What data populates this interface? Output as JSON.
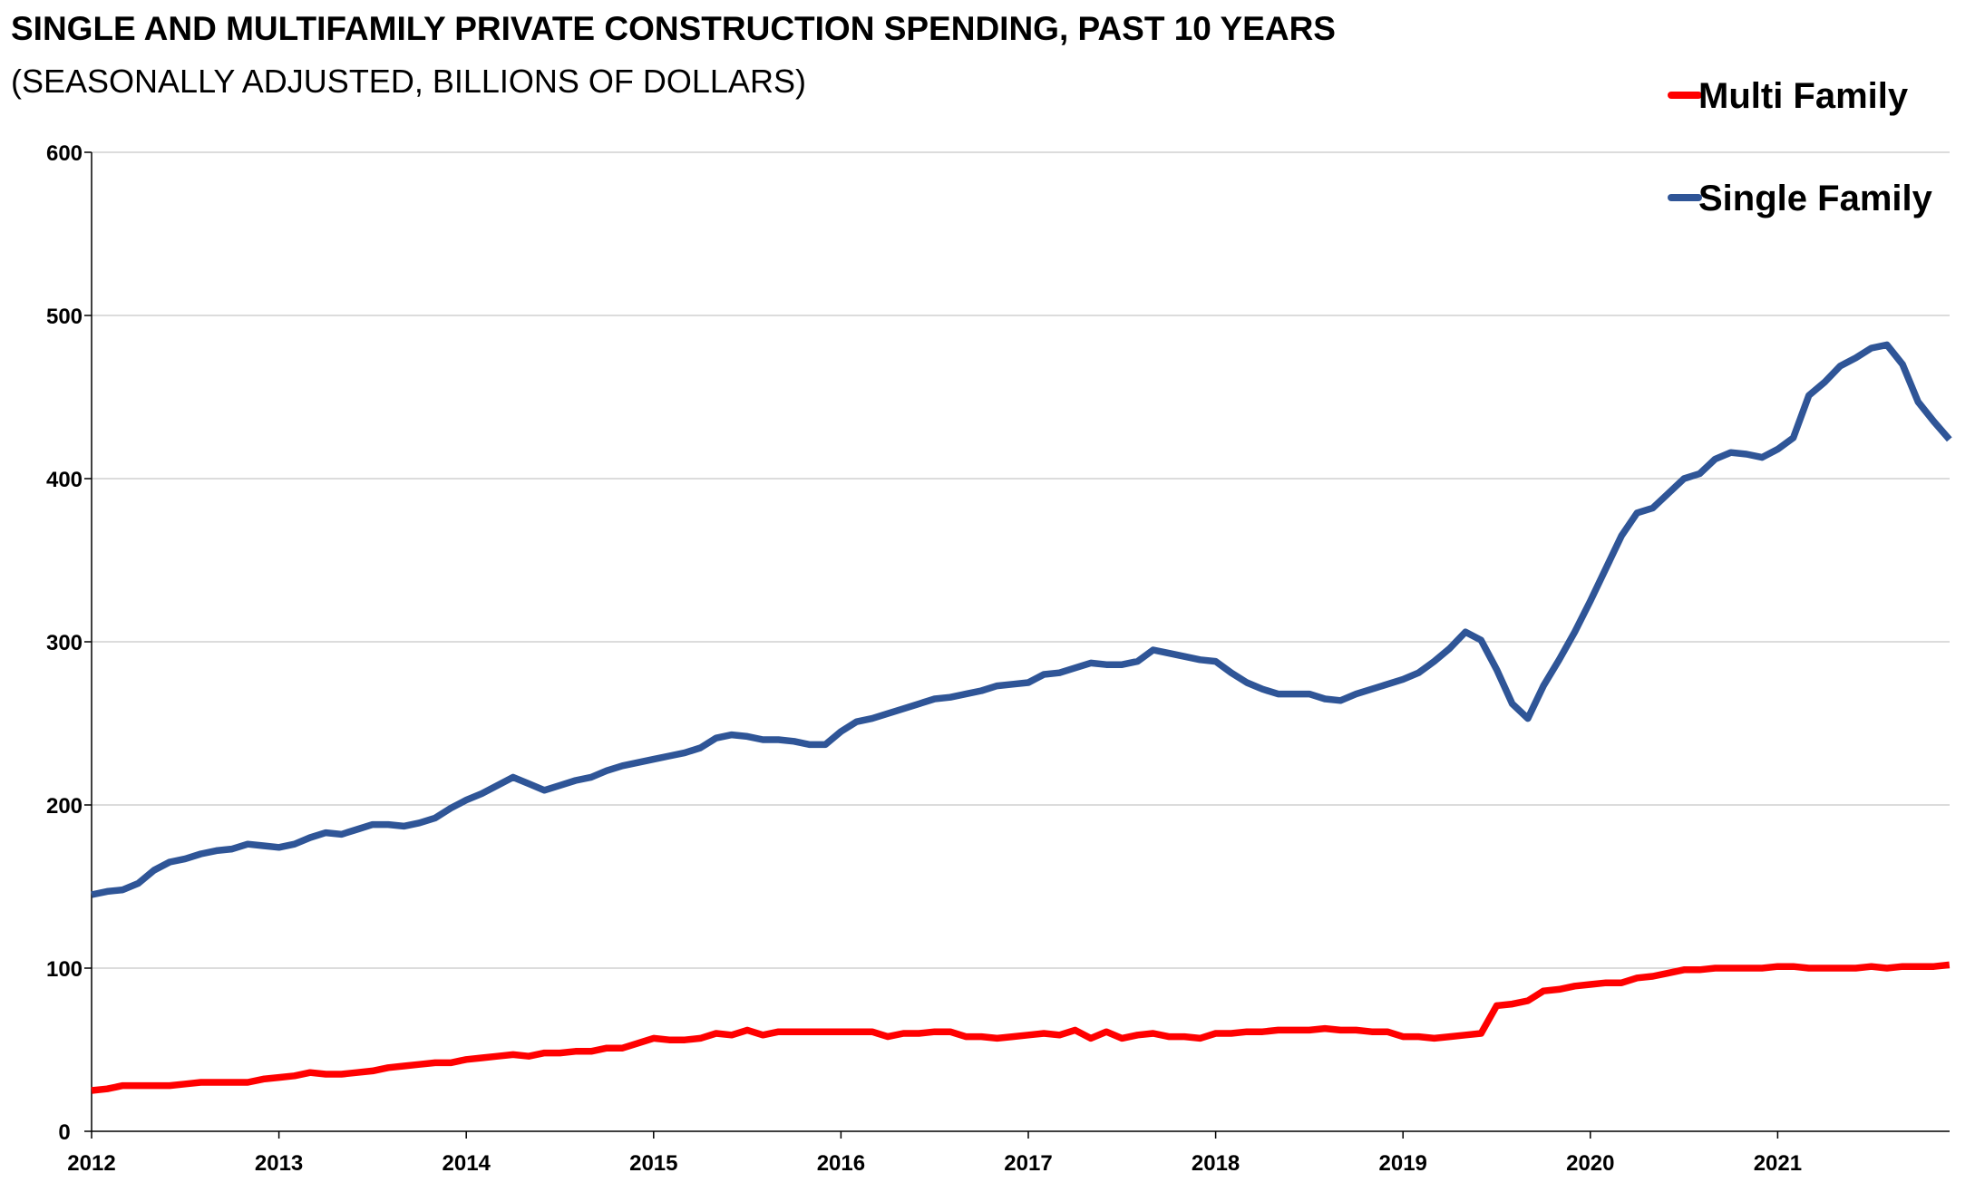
{
  "chart_data": {
    "type": "line",
    "title": "SINGLE AND MULTIFAMILY PRIVATE CONSTRUCTION SPENDING, PAST 10 YEARS",
    "subtitle": "(SEASONALLY ADJUSTED, BILLIONS OF DOLLARS)",
    "xlabel": "",
    "ylabel": "",
    "ylim": [
      0,
      600
    ],
    "yticks": [
      "0",
      "100",
      "200",
      "300",
      "400",
      "500",
      "600"
    ],
    "xticks": [
      "2012",
      "2013",
      "2014",
      "2015",
      "2016",
      "2017",
      "2018",
      "2019",
      "2020",
      "2021"
    ],
    "x_start": "2012-01",
    "x_frequency": "monthly",
    "grid": true,
    "legend_position": "top-right",
    "series": [
      {
        "name": "Multi Family",
        "color": "#ff0000",
        "values": [
          25,
          26,
          28,
          28,
          28,
          28,
          29,
          30,
          30,
          30,
          30,
          32,
          33,
          34,
          36,
          35,
          35,
          36,
          37,
          39,
          40,
          41,
          42,
          42,
          44,
          45,
          46,
          47,
          46,
          48,
          48,
          49,
          49,
          51,
          51,
          54,
          57,
          56,
          56,
          57,
          60,
          59,
          62,
          59,
          61,
          61,
          61,
          61,
          61,
          61,
          61,
          58,
          60,
          60,
          61,
          61,
          58,
          58,
          57,
          58,
          59,
          60,
          59,
          62,
          57,
          61,
          57,
          59,
          60,
          58,
          58,
          57,
          60,
          60,
          61,
          61,
          62,
          62,
          62,
          63,
          62,
          62,
          61,
          61,
          58,
          58,
          57,
          58,
          59,
          60,
          77,
          78,
          80,
          86,
          87,
          89,
          90,
          91,
          91,
          94,
          95,
          97,
          99,
          99,
          100,
          100,
          100,
          100,
          101,
          101,
          100,
          100,
          100,
          100,
          101,
          100,
          101,
          101,
          101,
          102
        ]
      },
      {
        "name": "Single Family",
        "color": "#2f5597",
        "values": [
          145,
          147,
          148,
          152,
          160,
          165,
          167,
          170,
          172,
          173,
          176,
          175,
          174,
          176,
          180,
          183,
          182,
          185,
          188,
          188,
          187,
          189,
          192,
          198,
          203,
          207,
          212,
          217,
          213,
          209,
          212,
          215,
          217,
          221,
          224,
          226,
          228,
          230,
          232,
          235,
          241,
          243,
          242,
          240,
          240,
          239,
          237,
          237,
          245,
          251,
          253,
          256,
          259,
          262,
          265,
          266,
          268,
          270,
          273,
          274,
          275,
          280,
          281,
          284,
          287,
          286,
          286,
          288,
          295,
          293,
          291,
          289,
          288,
          281,
          275,
          271,
          268,
          268,
          268,
          265,
          264,
          268,
          271,
          274,
          277,
          281,
          288,
          296,
          306,
          301,
          283,
          262,
          253,
          273,
          289,
          306,
          325,
          345,
          365,
          379,
          382,
          391,
          400,
          403,
          412,
          416,
          415,
          413,
          418,
          425,
          451,
          459,
          469,
          474,
          480,
          482,
          470,
          447,
          435,
          424
        ]
      }
    ]
  }
}
